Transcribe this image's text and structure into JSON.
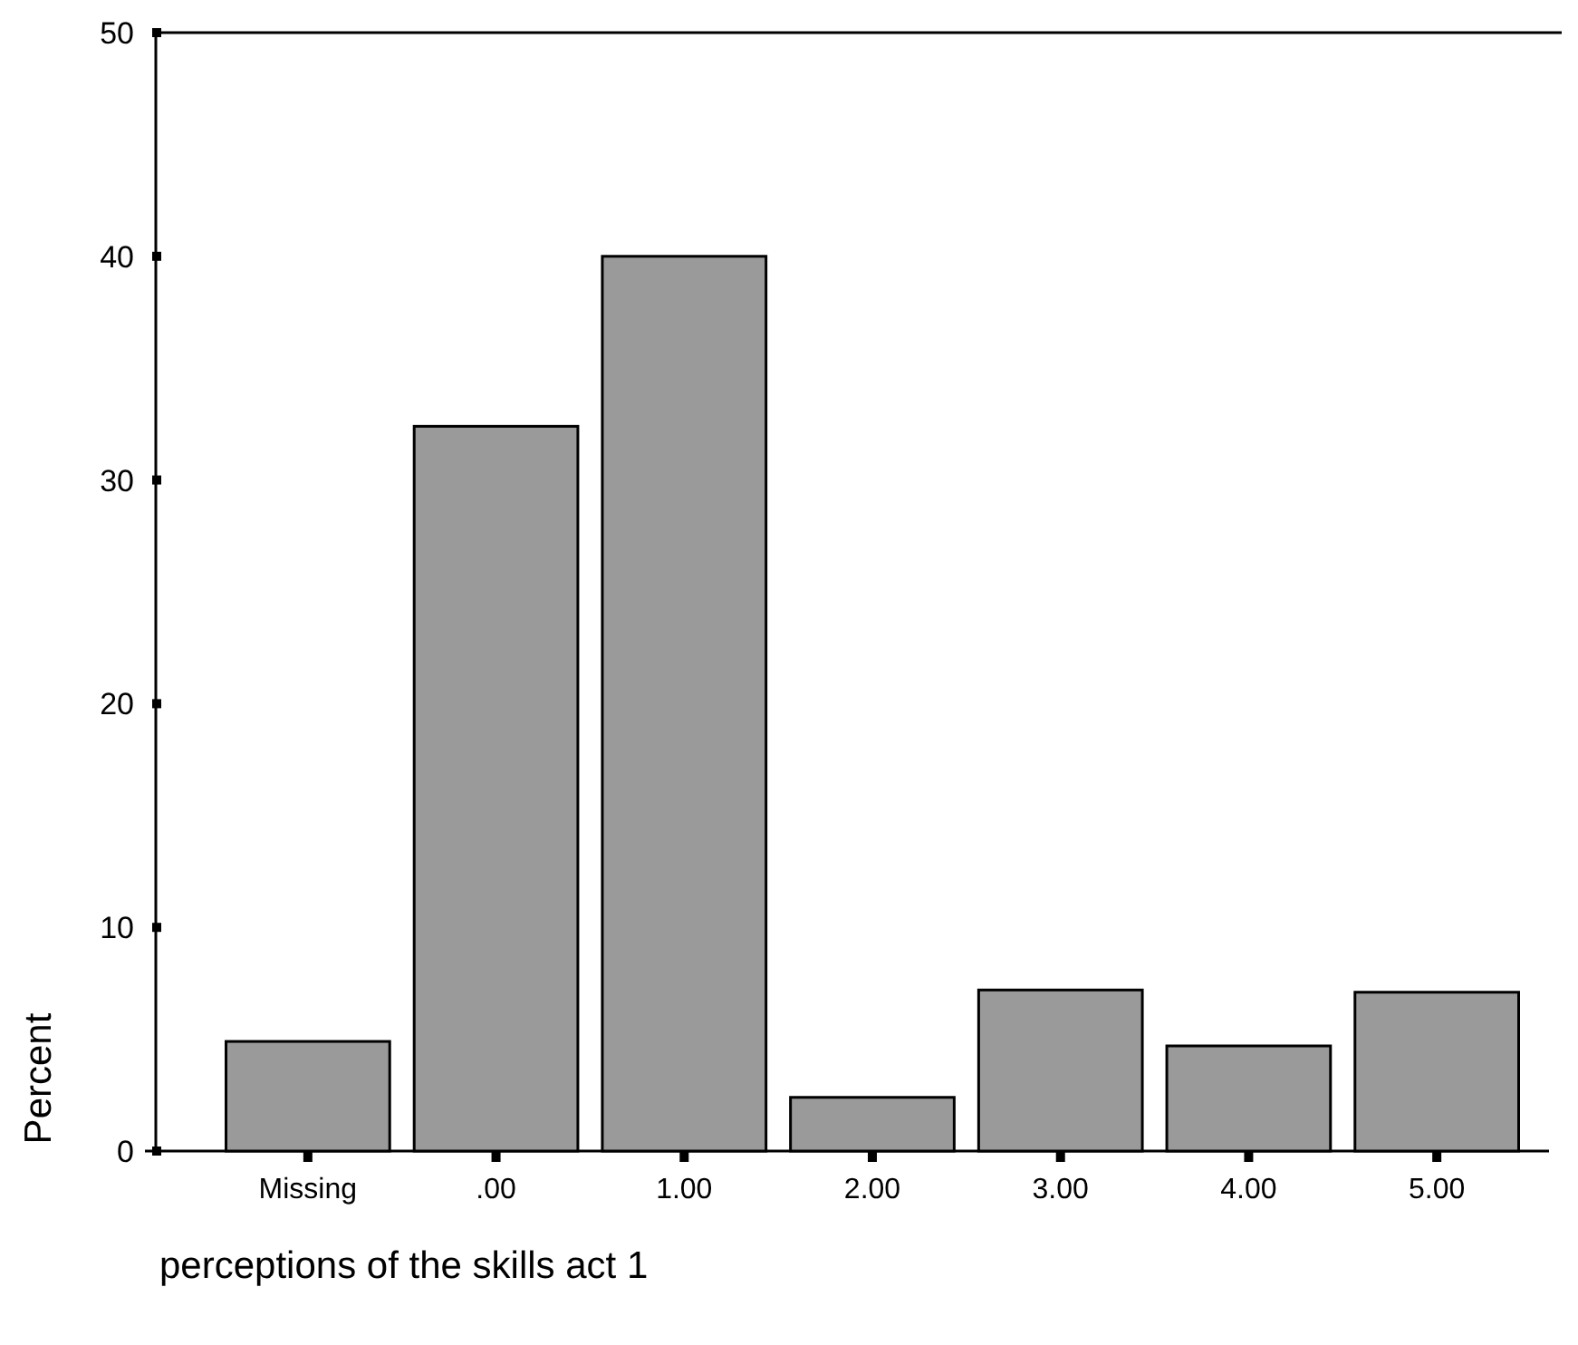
{
  "chart_data": {
    "type": "bar",
    "xlabel": "perceptions of the skills act 1",
    "ylabel": "Percent",
    "categories": [
      "Missing",
      ".00",
      "1.00",
      "2.00",
      "3.00",
      "4.00",
      "5.00"
    ],
    "values": [
      4.9,
      32.4,
      40.0,
      2.4,
      7.2,
      4.7,
      7.1
    ],
    "color": "#9a9a9a",
    "ylim": [
      0,
      50
    ],
    "yticks": [
      0,
      10,
      20,
      30,
      40,
      50
    ],
    "grid": false
  }
}
